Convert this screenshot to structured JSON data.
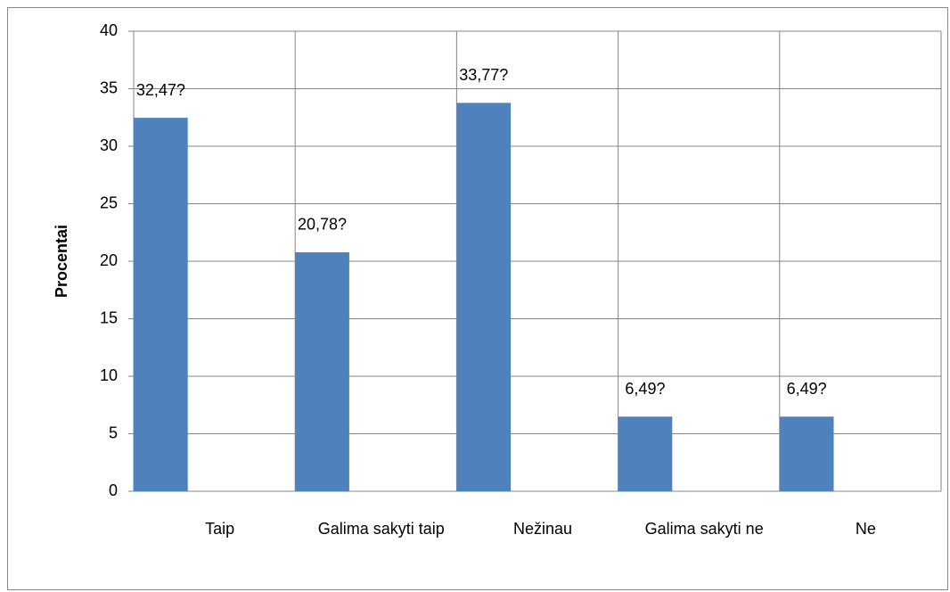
{
  "chart_data": {
    "type": "bar",
    "y_label": "Procentai",
    "categories": [
      "Taip",
      "Galima sakyti taip",
      "Nežinau",
      "Galima sakyti ne",
      "Ne"
    ],
    "values": [
      32.47,
      20.78,
      33.77,
      6.49,
      6.49
    ],
    "value_labels": [
      "32,47?",
      "20,78?",
      "33,77?",
      "6,49?",
      "6,49?"
    ],
    "color": "#4f81bd",
    "ylim": [
      0,
      40
    ],
    "yticks": [
      0,
      5,
      10,
      15,
      20,
      25,
      30,
      35,
      40
    ],
    "grid": true
  }
}
